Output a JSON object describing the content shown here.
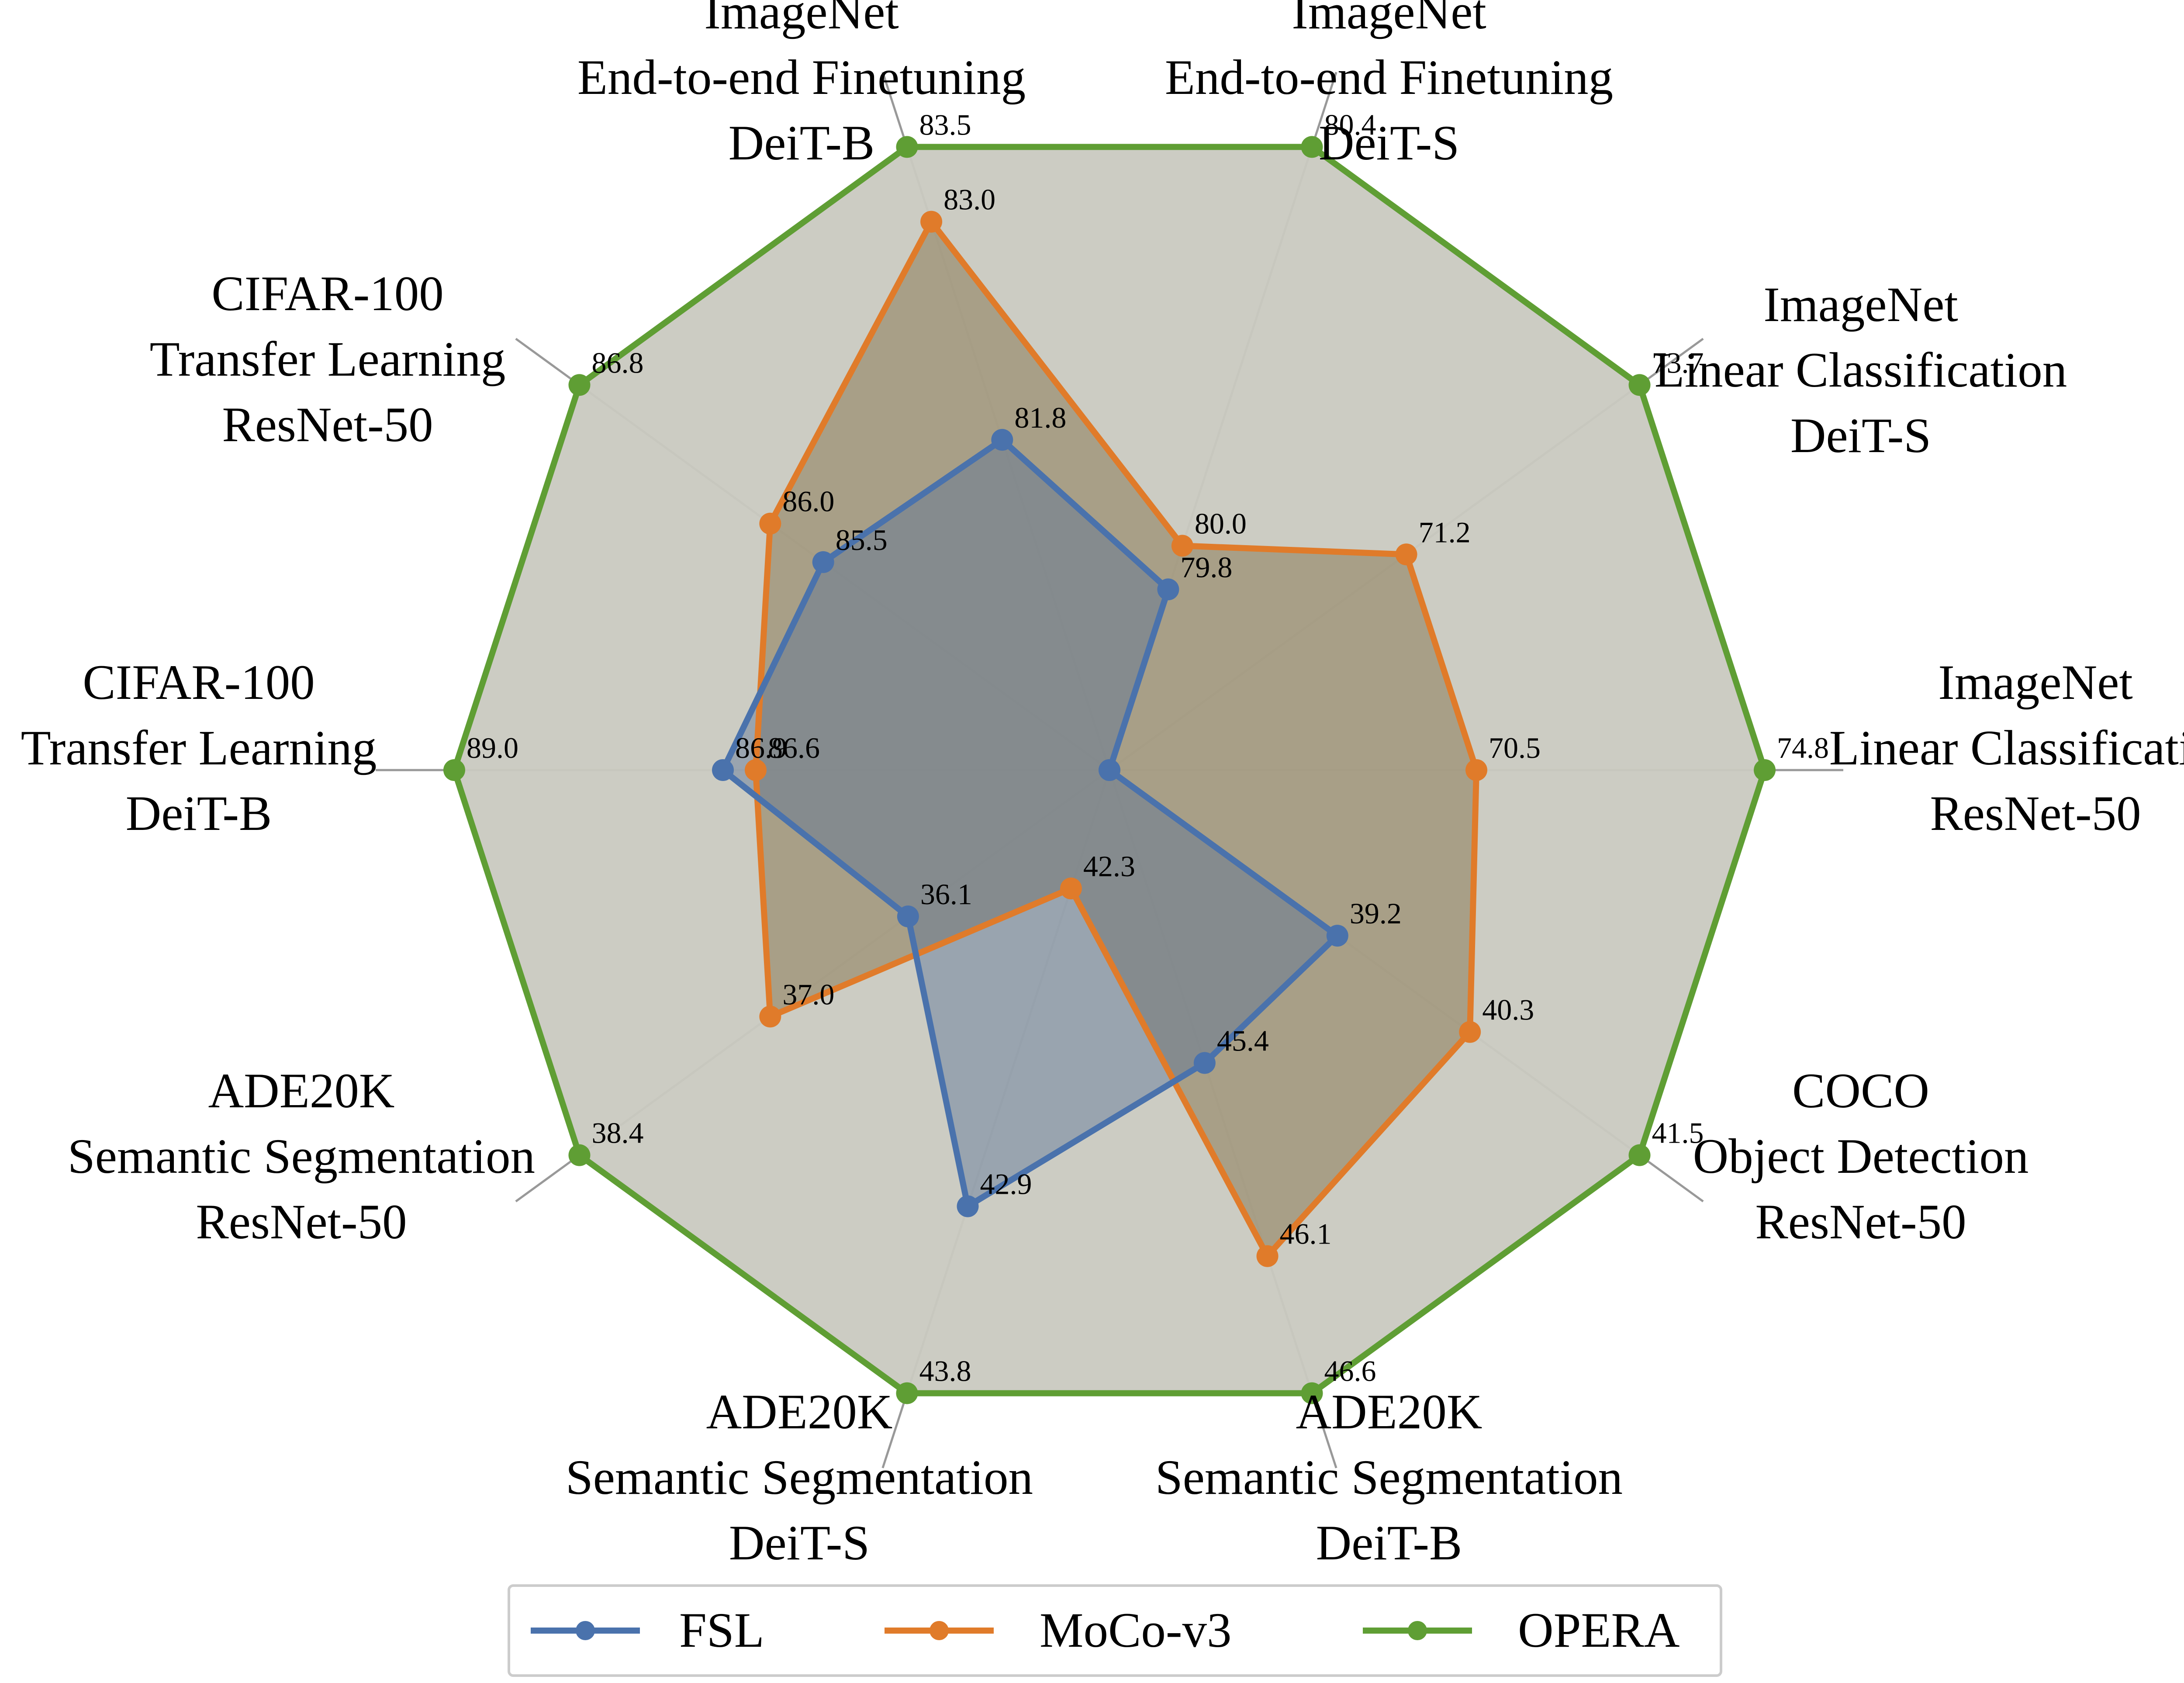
{
  "chart_data": {
    "type": "radar",
    "title": "",
    "axes": [
      {
        "lines": [
          "ImageNet",
          "Linear Classification",
          "ResNet-50"
        ]
      },
      {
        "lines": [
          "ImageNet",
          "Linear Classification",
          "DeiT-S"
        ]
      },
      {
        "lines": [
          "ImageNet",
          "End-to-end Finetuning",
          "DeiT-S"
        ]
      },
      {
        "lines": [
          "ImageNet",
          "End-to-end Finetuning",
          "DeiT-B"
        ]
      },
      {
        "lines": [
          "CIFAR-100",
          "Transfer Learning",
          "ResNet-50"
        ]
      },
      {
        "lines": [
          "CIFAR-100",
          "Transfer Learning",
          "DeiT-B"
        ]
      },
      {
        "lines": [
          "ADE20K",
          "Semantic Segmentation",
          "ResNet-50"
        ]
      },
      {
        "lines": [
          "ADE20K",
          "Semantic Segmentation",
          "DeiT-S"
        ]
      },
      {
        "lines": [
          "ADE20K",
          "Semantic Segmentation",
          "DeiT-B"
        ]
      },
      {
        "lines": [
          "COCO",
          "Object Detection",
          "ResNet-50"
        ]
      }
    ],
    "series": [
      {
        "name": "OPERA",
        "color": "#5f9e34",
        "fill": "#c9c9c0",
        "values": [
          74.8,
          73.7,
          80.4,
          83.5,
          86.8,
          89.0,
          38.4,
          43.8,
          46.6,
          41.5
        ],
        "labels": [
          "74.8",
          "73.7",
          "80.4",
          "83.5",
          "86.8",
          "89.0",
          "38.4",
          "43.8",
          "46.6",
          "41.5"
        ],
        "radius_fraction": [
          1,
          1,
          1,
          1,
          1,
          1,
          1,
          1,
          1,
          1
        ]
      },
      {
        "name": "MoCo-v3",
        "color": "#e07b2a",
        "fill": "#8a7a55",
        "values": [
          70.5,
          71.2,
          80.0,
          83.0,
          86.0,
          86.6,
          37.0,
          42.3,
          46.1,
          40.3
        ],
        "labels": [
          "70.5",
          "71.2",
          "80.0",
          "83.0",
          "86.0",
          "86.6",
          "37.0",
          "42.3",
          "46.1",
          "40.3"
        ],
        "radius_fraction": [
          0.56,
          0.56,
          0.36,
          0.88,
          0.64,
          0.54,
          0.64,
          0.19,
          0.78,
          0.68
        ]
      },
      {
        "name": "FSL",
        "color": "#4a72ac",
        "fill": "#5a7496",
        "values": [
          null,
          null,
          79.8,
          81.8,
          85.5,
          86.9,
          36.1,
          42.9,
          45.4,
          39.2
        ],
        "labels": [
          "",
          "",
          "79.8",
          "81.8",
          "85.5",
          "86.9",
          "36.1",
          "42.9",
          "45.4",
          "39.2"
        ],
        "radius_fraction": [
          0,
          0,
          0.29,
          0.53,
          0.54,
          0.59,
          0.38,
          0.7,
          0.47,
          0.43
        ]
      }
    ],
    "legend_position": "bottom-center",
    "grid": true
  }
}
